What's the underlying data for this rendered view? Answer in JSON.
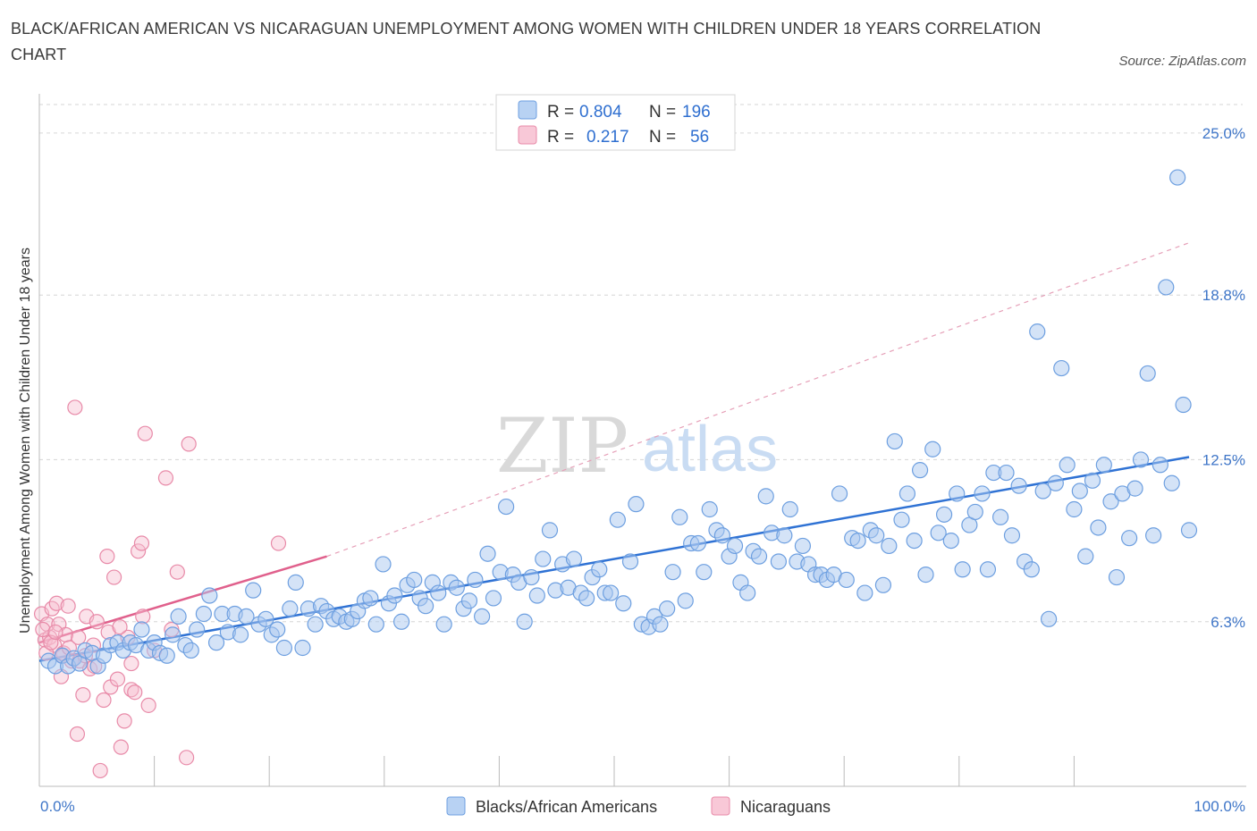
{
  "title": "BLACK/AFRICAN AMERICAN VS NICARAGUAN UNEMPLOYMENT AMONG WOMEN WITH CHILDREN UNDER 18 YEARS CORRELATION CHART",
  "source": "Source: ZipAtlas.com",
  "watermark": {
    "zip": "ZIP",
    "atlas": "atlas"
  },
  "colors": {
    "blue_fill": "#a9c8f0",
    "blue_stroke": "#6d9fe0",
    "blue_line": "#2f72d4",
    "pink_fill": "#f6bfd0",
    "pink_stroke": "#e88aa8",
    "pink_line": "#e0608c",
    "grid": "#d6d6d6",
    "axis_label": "#3f76c8"
  },
  "legend": {
    "rows": [
      {
        "r_label": "R = ",
        "r_value": "0.804",
        "n_label": "N = ",
        "n_value": "196"
      },
      {
        "r_label": "R = ",
        "r_value": "0.217",
        "n_label": "N = ",
        "n_value": "56"
      }
    ]
  },
  "chart_data": {
    "type": "scatter",
    "title": "BLACK/AFRICAN AMERICAN VS NICARAGUAN UNEMPLOYMENT AMONG WOMEN WITH CHILDREN UNDER 18 YEARS CORRELATION CHART",
    "xlabel": "",
    "ylabel": "Unemployment Among Women with Children Under 18 years",
    "xlim": [
      0,
      100
    ],
    "ylim": [
      0,
      26.5
    ],
    "x_tick_labels": [
      "0.0%",
      "100.0%"
    ],
    "y_ticks": [
      6.3,
      12.5,
      18.8,
      25.0
    ],
    "y_tick_labels": [
      "6.3%",
      "12.5%",
      "18.8%",
      "25.0%"
    ],
    "grid": "horizontal dashed",
    "legend_position": "top-center",
    "series": [
      {
        "name": "Blacks/African Americans",
        "r": 0.804,
        "n": 196,
        "trend": {
          "x": [
            0,
            100
          ],
          "y": [
            4.8,
            12.6
          ],
          "style": "solid"
        },
        "points": [
          [
            0.8,
            4.8
          ],
          [
            1.4,
            4.6
          ],
          [
            2,
            5
          ],
          [
            2.5,
            4.6
          ],
          [
            3,
            4.9
          ],
          [
            3.5,
            4.7
          ],
          [
            4,
            5.2
          ],
          [
            4.6,
            5.1
          ],
          [
            5.1,
            4.6
          ],
          [
            5.6,
            5
          ],
          [
            6.2,
            5.4
          ],
          [
            6.8,
            5.5
          ],
          [
            7.3,
            5.2
          ],
          [
            7.9,
            5.5
          ],
          [
            8.4,
            5.4
          ],
          [
            8.9,
            6
          ],
          [
            9.5,
            5.2
          ],
          [
            10,
            5.5
          ],
          [
            10.5,
            5.1
          ],
          [
            11.1,
            5
          ],
          [
            11.6,
            5.8
          ],
          [
            12.1,
            6.5
          ],
          [
            12.7,
            5.4
          ],
          [
            13.2,
            5.2
          ],
          [
            13.7,
            6
          ],
          [
            14.3,
            6.6
          ],
          [
            14.8,
            7.3
          ],
          [
            15.4,
            5.5
          ],
          [
            15.9,
            6.6
          ],
          [
            16.4,
            5.9
          ],
          [
            17,
            6.6
          ],
          [
            17.5,
            5.8
          ],
          [
            18,
            6.5
          ],
          [
            18.6,
            7.5
          ],
          [
            19.1,
            6.2
          ],
          [
            19.7,
            6.4
          ],
          [
            20.2,
            5.8
          ],
          [
            20.7,
            6
          ],
          [
            21.3,
            5.3
          ],
          [
            21.8,
            6.8
          ],
          [
            22.3,
            7.8
          ],
          [
            22.9,
            5.3
          ],
          [
            23.4,
            6.8
          ],
          [
            24,
            6.2
          ],
          [
            24.5,
            6.9
          ],
          [
            25,
            6.7
          ],
          [
            25.6,
            6.4
          ],
          [
            26.1,
            6.5
          ],
          [
            26.7,
            6.3
          ],
          [
            27.2,
            6.4
          ],
          [
            27.7,
            6.7
          ],
          [
            28.3,
            7.1
          ],
          [
            28.8,
            7.2
          ],
          [
            29.3,
            6.2
          ],
          [
            29.9,
            8.5
          ],
          [
            30.4,
            7
          ],
          [
            30.9,
            7.3
          ],
          [
            31.5,
            6.3
          ],
          [
            32,
            7.7
          ],
          [
            32.6,
            7.9
          ],
          [
            33.1,
            7.2
          ],
          [
            33.6,
            6.9
          ],
          [
            34.2,
            7.8
          ],
          [
            34.7,
            7.4
          ],
          [
            35.2,
            6.2
          ],
          [
            35.8,
            7.8
          ],
          [
            36.3,
            7.6
          ],
          [
            36.9,
            6.8
          ],
          [
            37.4,
            7.1
          ],
          [
            37.9,
            7.9
          ],
          [
            38.5,
            6.5
          ],
          [
            39,
            8.9
          ],
          [
            39.5,
            7.2
          ],
          [
            40.1,
            8.2
          ],
          [
            40.6,
            10.7
          ],
          [
            41.2,
            8.1
          ],
          [
            41.7,
            7.8
          ],
          [
            42.2,
            6.3
          ],
          [
            42.8,
            8
          ],
          [
            43.3,
            7.3
          ],
          [
            43.8,
            8.7
          ],
          [
            44.4,
            9.8
          ],
          [
            44.9,
            7.5
          ],
          [
            45.5,
            8.5
          ],
          [
            46,
            7.6
          ],
          [
            46.5,
            8.7
          ],
          [
            47.1,
            7.4
          ],
          [
            47.6,
            7.2
          ],
          [
            48.1,
            8
          ],
          [
            48.7,
            8.3
          ],
          [
            49.2,
            7.4
          ],
          [
            49.7,
            7.4
          ],
          [
            50.3,
            10.2
          ],
          [
            50.8,
            7
          ],
          [
            51.4,
            8.6
          ],
          [
            51.9,
            10.8
          ],
          [
            52.4,
            6.2
          ],
          [
            53,
            6.1
          ],
          [
            53.5,
            6.5
          ],
          [
            54,
            6.2
          ],
          [
            54.6,
            6.8
          ],
          [
            55.1,
            8.2
          ],
          [
            55.7,
            10.3
          ],
          [
            56.2,
            7.1
          ],
          [
            56.7,
            9.3
          ],
          [
            57.3,
            9.3
          ],
          [
            57.8,
            8.2
          ],
          [
            58.3,
            10.6
          ],
          [
            58.9,
            9.8
          ],
          [
            59.4,
            9.6
          ],
          [
            60,
            8.8
          ],
          [
            60.5,
            9.2
          ],
          [
            61,
            7.8
          ],
          [
            61.6,
            7.4
          ],
          [
            62.1,
            9
          ],
          [
            62.6,
            8.8
          ],
          [
            63.2,
            11.1
          ],
          [
            63.7,
            9.7
          ],
          [
            64.3,
            8.6
          ],
          [
            64.8,
            9.6
          ],
          [
            65.3,
            10.6
          ],
          [
            65.9,
            8.6
          ],
          [
            66.4,
            9.2
          ],
          [
            66.9,
            8.5
          ],
          [
            67.5,
            8.1
          ],
          [
            68,
            8.1
          ],
          [
            68.5,
            7.9
          ],
          [
            69.1,
            8.1
          ],
          [
            69.6,
            11.2
          ],
          [
            70.2,
            7.9
          ],
          [
            70.7,
            9.5
          ],
          [
            71.2,
            9.4
          ],
          [
            71.8,
            7.4
          ],
          [
            72.3,
            9.8
          ],
          [
            72.8,
            9.6
          ],
          [
            73.4,
            7.7
          ],
          [
            73.9,
            9.2
          ],
          [
            74.4,
            13.2
          ],
          [
            75,
            10.2
          ],
          [
            75.5,
            11.2
          ],
          [
            76.1,
            9.4
          ],
          [
            76.6,
            12.1
          ],
          [
            77.1,
            8.1
          ],
          [
            77.7,
            12.9
          ],
          [
            78.2,
            9.7
          ],
          [
            78.7,
            10.4
          ],
          [
            79.3,
            9.4
          ],
          [
            79.8,
            11.2
          ],
          [
            80.3,
            8.3
          ],
          [
            80.9,
            10
          ],
          [
            81.4,
            10.5
          ],
          [
            82,
            11.2
          ],
          [
            82.5,
            8.3
          ],
          [
            83,
            12
          ],
          [
            83.6,
            10.3
          ],
          [
            84.1,
            12
          ],
          [
            84.6,
            9.6
          ],
          [
            85.2,
            11.5
          ],
          [
            85.7,
            8.6
          ],
          [
            86.3,
            8.3
          ],
          [
            86.8,
            17.4
          ],
          [
            87.3,
            11.3
          ],
          [
            87.8,
            6.4
          ],
          [
            88.4,
            11.6
          ],
          [
            88.9,
            16
          ],
          [
            89.4,
            12.3
          ],
          [
            90,
            10.6
          ],
          [
            90.5,
            11.3
          ],
          [
            91,
            8.8
          ],
          [
            91.6,
            11.7
          ],
          [
            92.1,
            9.9
          ],
          [
            92.6,
            12.3
          ],
          [
            93.2,
            10.9
          ],
          [
            93.7,
            8.0
          ],
          [
            94.2,
            11.2
          ],
          [
            94.8,
            9.5
          ],
          [
            95.3,
            11.4
          ],
          [
            95.8,
            12.5
          ],
          [
            96.4,
            15.8
          ],
          [
            96.9,
            9.6
          ],
          [
            97.5,
            12.3
          ],
          [
            98,
            19.1
          ],
          [
            98.5,
            11.6
          ],
          [
            99,
            23.3
          ],
          [
            99.5,
            14.6
          ],
          [
            100,
            9.8
          ]
        ]
      },
      {
        "name": "Nicaraguans",
        "r": 0.217,
        "n": 56,
        "trend": {
          "x": [
            0,
            25
          ],
          "y": [
            5.5,
            8.8
          ],
          "style": "solid then dashed"
        },
        "points": [
          [
            0.2,
            6.6
          ],
          [
            0.5,
            5.6
          ],
          [
            0.7,
            6.2
          ],
          [
            0.9,
            5.7
          ],
          [
            1.1,
            6.8
          ],
          [
            1.3,
            5.4
          ],
          [
            1.5,
            7.0
          ],
          [
            1.7,
            6.2
          ],
          [
            1.9,
            4.2
          ],
          [
            2.1,
            5.1
          ],
          [
            2.3,
            5.8
          ],
          [
            2.5,
            6.9
          ],
          [
            2.8,
            4.8
          ],
          [
            3.1,
            14.5
          ],
          [
            3.3,
            2.0
          ],
          [
            3.5,
            4.8
          ],
          [
            3.8,
            3.5
          ],
          [
            4.1,
            6.5
          ],
          [
            4.4,
            4.5
          ],
          [
            4.7,
            5.4
          ],
          [
            5,
            6.3
          ],
          [
            5.3,
            0.6
          ],
          [
            5.6,
            3.3
          ],
          [
            5.9,
            8.8
          ],
          [
            6.2,
            3.8
          ],
          [
            6.5,
            8.0
          ],
          [
            6.8,
            4.1
          ],
          [
            7.1,
            1.5
          ],
          [
            7.4,
            2.5
          ],
          [
            7.7,
            5.7
          ],
          [
            8,
            3.7
          ],
          [
            8.3,
            3.6
          ],
          [
            8.6,
            9.0
          ],
          [
            8.9,
            9.3
          ],
          [
            9.2,
            13.5
          ],
          [
            9.5,
            3.1
          ],
          [
            10,
            5.2
          ],
          [
            11,
            11.8
          ],
          [
            12,
            8.2
          ],
          [
            12.8,
            1.1
          ],
          [
            13,
            13.1
          ],
          [
            20.8,
            9.3
          ],
          [
            0.3,
            6.0
          ],
          [
            0.6,
            5.1
          ],
          [
            1,
            5.5
          ],
          [
            1.4,
            5.9
          ],
          [
            2,
            5.0
          ],
          [
            2.6,
            5.3
          ],
          [
            3.4,
            5.7
          ],
          [
            4,
            5.0
          ],
          [
            4.8,
            4.6
          ],
          [
            6,
            5.9
          ],
          [
            7,
            6.1
          ],
          [
            8,
            4.7
          ],
          [
            9,
            6.5
          ],
          [
            11.5,
            6.0
          ]
        ]
      }
    ]
  },
  "bottom_legend": [
    "Blacks/African Americans",
    "Nicaraguans"
  ]
}
